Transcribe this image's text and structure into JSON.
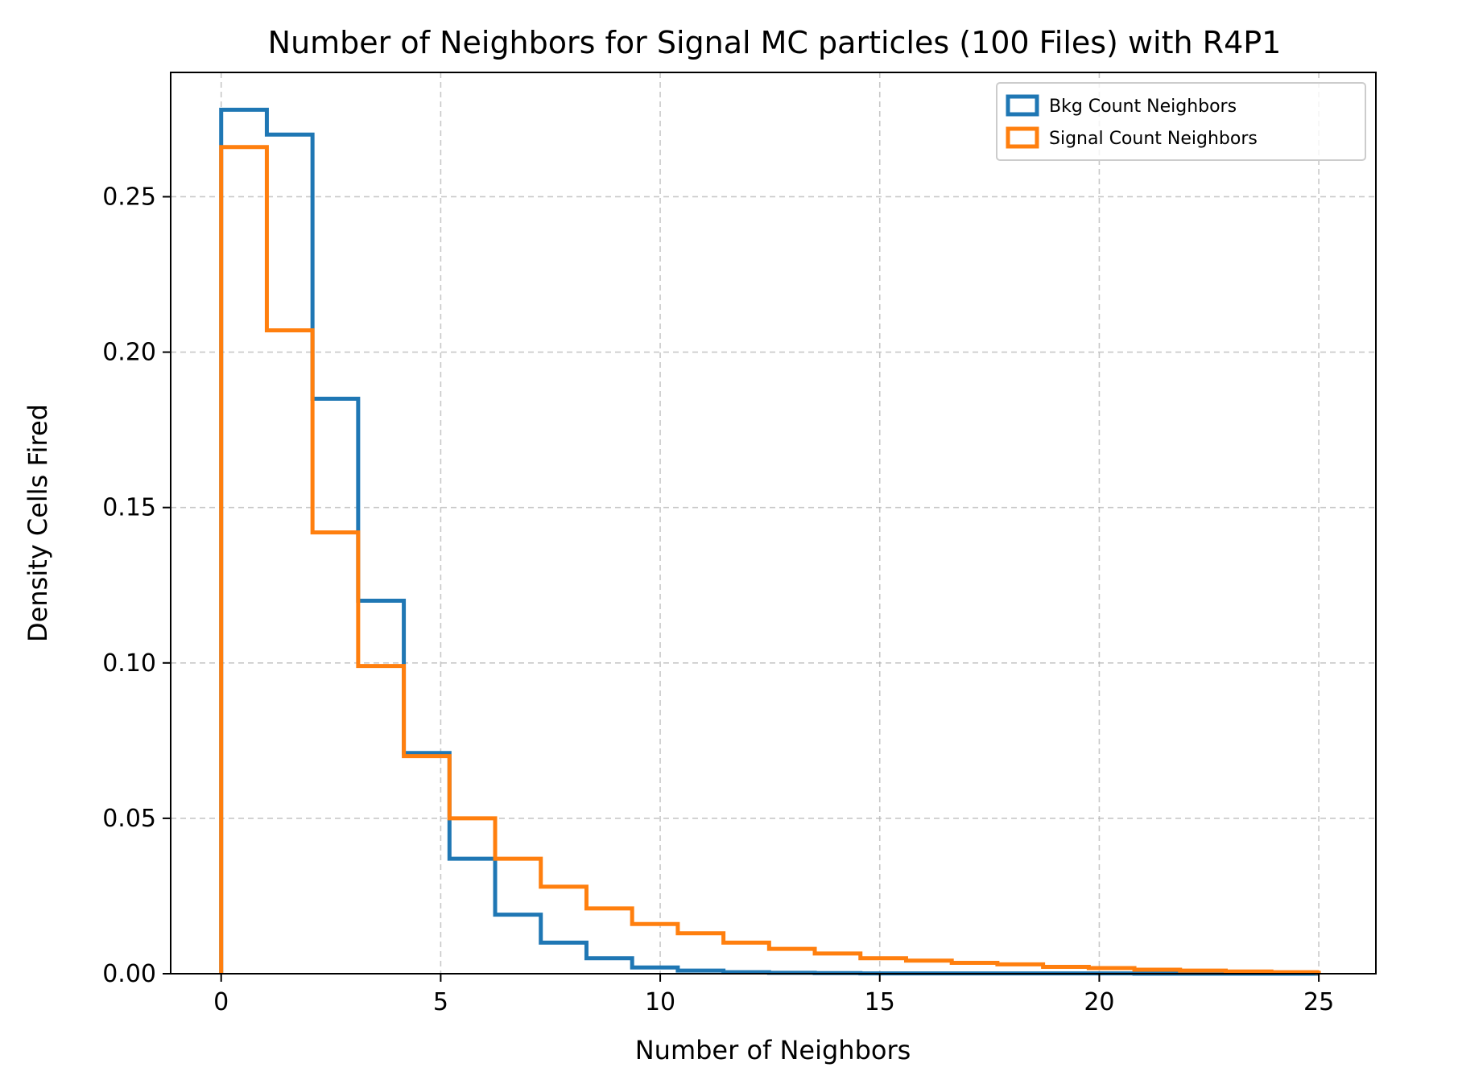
{
  "chart_data": {
    "type": "histogram",
    "title": "Number of Neighbors for Signal MC particles (100 Files) with R4P1",
    "xlabel": "Number of Neighbors",
    "ylabel": "Density Cells Fired",
    "xlim": [
      -1.15,
      26.3
    ],
    "ylim": [
      0,
      0.29
    ],
    "xticks": [
      0,
      5,
      10,
      15,
      20,
      25
    ],
    "yticks": [
      0.0,
      0.05,
      0.1,
      0.15,
      0.2,
      0.25
    ],
    "xtick_labels": [
      "0",
      "5",
      "10",
      "15",
      "20",
      "25"
    ],
    "ytick_labels": [
      "0.00",
      "0.05",
      "0.10",
      "0.15",
      "0.20",
      "0.25"
    ],
    "grid": true,
    "legend_position": "top-right",
    "bin_edges": [
      0.0,
      1.04,
      2.08,
      3.12,
      4.16,
      5.2,
      6.24,
      7.28,
      8.32,
      9.36,
      10.4,
      11.44,
      12.48,
      13.52,
      14.56,
      15.6,
      16.64,
      17.68,
      18.72,
      19.76,
      20.8,
      21.84,
      22.88,
      23.92,
      24.96,
      25.0
    ],
    "series": [
      {
        "name": "Bkg Count Neighbors",
        "color": "#1f77b4",
        "values": [
          0.278,
          0.27,
          0.185,
          0.12,
          0.071,
          0.037,
          0.019,
          0.01,
          0.005,
          0.002,
          0.001,
          0.0005,
          0.0003,
          0.0002,
          0.0001,
          0.0001,
          0.0001,
          0.0001,
          0.0001,
          0.0001,
          0,
          0,
          0,
          0,
          0
        ]
      },
      {
        "name": "Signal Count Neighbors",
        "color": "#ff7f0e",
        "values": [
          0.266,
          0.207,
          0.142,
          0.099,
          0.07,
          0.05,
          0.037,
          0.028,
          0.021,
          0.016,
          0.013,
          0.01,
          0.008,
          0.0065,
          0.005,
          0.0042,
          0.0035,
          0.003,
          0.0022,
          0.0018,
          0.0013,
          0.001,
          0.0007,
          0.0005,
          0.0003
        ]
      }
    ]
  }
}
